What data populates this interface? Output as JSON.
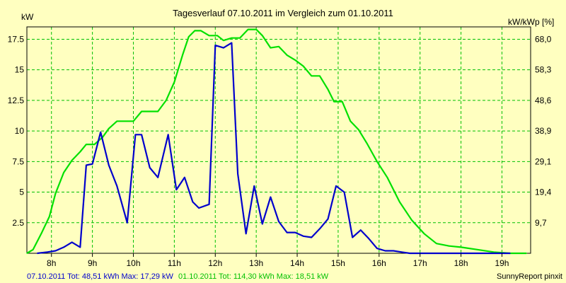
{
  "chart_data": {
    "type": "line",
    "title": "Tagesverlauf 07.10.2011 im Vergleich zum 01.10.2011",
    "ylabel_left": "kW",
    "ylabel_right": "kW/kWp [%]",
    "grid": true,
    "xlim": [
      7.4,
      19.7
    ],
    "ylim": [
      0,
      18.51
    ],
    "x_ticks": [
      {
        "x": 8,
        "label": "8h"
      },
      {
        "x": 9,
        "label": "9h"
      },
      {
        "x": 10,
        "label": "10h"
      },
      {
        "x": 11,
        "label": "11h"
      },
      {
        "x": 12,
        "label": "12h"
      },
      {
        "x": 13,
        "label": "13h"
      },
      {
        "x": 14,
        "label": "14h"
      },
      {
        "x": 15,
        "label": "15h"
      },
      {
        "x": 16,
        "label": "16h"
      },
      {
        "x": 17,
        "label": "17h"
      },
      {
        "x": 18,
        "label": "18h"
      },
      {
        "x": 19,
        "label": "19h"
      }
    ],
    "y_ticks_left": [
      {
        "y": 2.5,
        "label": "2.5"
      },
      {
        "y": 5,
        "label": "5"
      },
      {
        "y": 7.5,
        "label": "7.5"
      },
      {
        "y": 10,
        "label": "10"
      },
      {
        "y": 12.5,
        "label": "12.5"
      },
      {
        "y": 15,
        "label": "15"
      },
      {
        "y": 17.5,
        "label": "17.5"
      }
    ],
    "y_ticks_right": [
      {
        "y": 2.5,
        "label": "9,7"
      },
      {
        "y": 5,
        "label": "19,4"
      },
      {
        "y": 7.5,
        "label": "29,1"
      },
      {
        "y": 10,
        "label": "38,9"
      },
      {
        "y": 12.5,
        "label": "48,6"
      },
      {
        "y": 15,
        "label": "58,3"
      },
      {
        "y": 17.5,
        "label": "68,0"
      }
    ],
    "series": [
      {
        "name": "01.10.2011",
        "color": "#00e000",
        "x": [
          7.4,
          7.55,
          7.75,
          7.95,
          8.1,
          8.3,
          8.5,
          8.7,
          8.85,
          9.05,
          9.25,
          9.4,
          9.6,
          9.8,
          10.0,
          10.2,
          10.35,
          10.6,
          10.8,
          11.0,
          11.2,
          11.35,
          11.5,
          11.65,
          11.85,
          12.05,
          12.2,
          12.4,
          12.6,
          12.8,
          13.0,
          13.15,
          13.35,
          13.55,
          13.75,
          13.95,
          14.15,
          14.35,
          14.55,
          14.75,
          14.9,
          15.1,
          15.3,
          15.5,
          15.7,
          15.95,
          16.2,
          16.5,
          16.8,
          17.1,
          17.4,
          17.7,
          18.0,
          18.4,
          18.8,
          19.2,
          19.6
        ],
        "values": [
          0.0,
          0.3,
          1.6,
          3.0,
          4.9,
          6.6,
          7.6,
          8.3,
          8.9,
          8.9,
          9.5,
          10.2,
          10.8,
          10.8,
          10.8,
          11.6,
          11.6,
          11.6,
          12.5,
          14.0,
          16.2,
          17.7,
          18.2,
          18.2,
          17.8,
          17.8,
          17.4,
          17.6,
          17.6,
          18.3,
          18.3,
          17.8,
          16.8,
          16.9,
          16.2,
          15.8,
          15.3,
          14.5,
          14.5,
          13.4,
          12.4,
          12.4,
          10.8,
          10.1,
          9.0,
          7.5,
          6.2,
          4.2,
          2.7,
          1.6,
          0.8,
          0.6,
          0.5,
          0.3,
          0.1,
          0.0,
          0.0
        ]
      },
      {
        "name": "07.10.2011",
        "color": "#0000cc",
        "x": [
          7.65,
          7.9,
          8.1,
          8.3,
          8.5,
          8.7,
          8.85,
          9.0,
          9.2,
          9.4,
          9.6,
          9.85,
          10.05,
          10.2,
          10.4,
          10.6,
          10.85,
          11.05,
          11.25,
          11.45,
          11.6,
          11.85,
          12.0,
          12.2,
          12.4,
          12.55,
          12.75,
          12.95,
          13.15,
          13.35,
          13.55,
          13.75,
          13.95,
          14.15,
          14.35,
          14.55,
          14.75,
          14.95,
          15.15,
          15.35,
          15.55,
          15.75,
          15.95,
          16.15,
          16.35,
          16.55,
          16.75,
          16.95,
          17.15,
          17.35,
          17.55,
          17.8,
          18.0,
          18.3,
          18.6,
          18.9,
          19.2
        ],
        "values": [
          0.0,
          0.1,
          0.2,
          0.5,
          0.9,
          0.5,
          7.2,
          7.3,
          9.9,
          7.2,
          5.5,
          2.5,
          9.7,
          9.7,
          7.0,
          6.2,
          9.7,
          5.2,
          6.2,
          4.2,
          3.7,
          4.0,
          17.0,
          16.8,
          17.2,
          6.5,
          1.6,
          5.5,
          2.4,
          4.6,
          2.6,
          1.7,
          1.7,
          1.4,
          1.3,
          2.0,
          2.8,
          5.5,
          5.0,
          1.3,
          1.9,
          1.2,
          0.4,
          0.2,
          0.2,
          0.1,
          0.0,
          0.0,
          0.0,
          0.0,
          0.0,
          0.0,
          0.0,
          0.0,
          0.0,
          0.0,
          0.0
        ]
      }
    ]
  },
  "footer": {
    "series1_text": "07.10.2011 Tot: 48,51 kWh Max: 17,29 kW",
    "series2_text": "01.10.2011 Tot: 114,30 kWh Max: 18,51 kW",
    "credit": "SunnyReport pinxit"
  }
}
